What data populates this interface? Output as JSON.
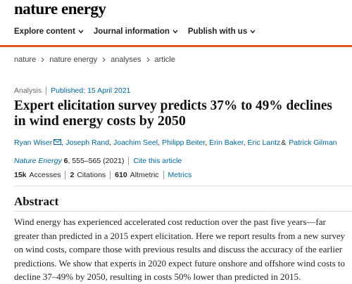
{
  "header": {
    "logo": "nature energy"
  },
  "nav": [
    "Explore content",
    "Journal information",
    "Publish with us"
  ],
  "breadcrumb": [
    "nature",
    "nature energy",
    "analyses",
    "article"
  ],
  "article": {
    "type": "Analysis",
    "published_label": "Published:",
    "published_date": "15 April 2021",
    "title_lines": [
      "Expert elicitation survey predicts 37% to 49% declines",
      "in wind energy costs by 2050"
    ],
    "authors": [
      {
        "name": "Ryan Wiser",
        "after": ","
      },
      {
        "name": "Joseph Rand",
        "after": ","
      },
      {
        "name": "Joachim Seel",
        "after": ","
      },
      {
        "name": "Philipp Beiter",
        "after": ","
      },
      {
        "name": "Erin Baker",
        "after": ","
      },
      {
        "name": "Eric Lantz",
        "after": "&"
      },
      {
        "name": "Patrick Gilman"
      }
    ],
    "citation": {
      "journal": "Nature Energy",
      "volume": "6",
      "pages": ", 555–565 (2021)",
      "cite": "Cite this article"
    },
    "metrics": [
      {
        "value": "15k",
        "label": "Accesses"
      },
      {
        "value": 2,
        "label": "Citations"
      },
      {
        "value": 610,
        "label": "Altmetric"
      }
    ],
    "metrics_link": "Metrics"
  },
  "abstract": {
    "heading": "Abstract",
    "lines": [
      "Wind energy has experienced accelerated cost reduction over the past five years—far",
      "greater than predicted in a 2015 expert elicitation. Here we report results from a new survey",
      "on wind costs, compare those with previous results and discuss the accuracy of the earlier",
      "predictions. We show that experts in 2020 expect future onshore and offshore wind costs to",
      "decline 37–49% by 2050, resulting in costs 50% lower than predicted in 2015."
    ]
  }
}
